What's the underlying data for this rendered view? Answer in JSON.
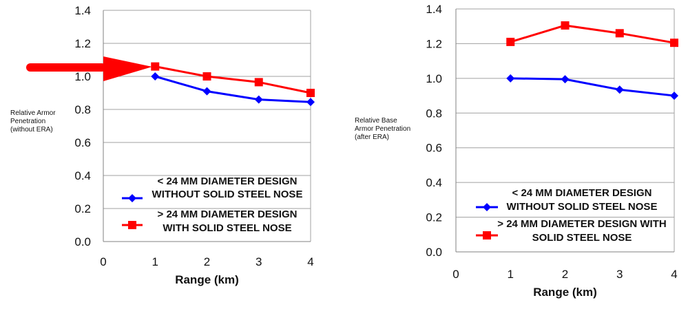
{
  "chart_data": [
    {
      "type": "line",
      "xlabel": "Range (km)",
      "ylabel_lines": [
        "Relative Armor",
        "Penetration",
        "(without ERA)"
      ],
      "xlim": [
        0,
        4
      ],
      "ylim": [
        0,
        1.4
      ],
      "x_ticks": [
        "0",
        "1",
        "2",
        "3",
        "4"
      ],
      "y_ticks": [
        "0.0",
        "0.2",
        "0.4",
        "0.6",
        "0.8",
        "1.0",
        "1.2",
        "1.4"
      ],
      "grid": true,
      "legend_position": "bottom-right",
      "annotation": "red-arrow pointing at x=1 red point",
      "series": [
        {
          "name_lines": [
            "< 24 MM DIAMETER DESIGN",
            "WITHOUT SOLID STEEL NOSE"
          ],
          "color": "#0000ff",
          "marker": "diamond",
          "x": [
            1,
            2,
            3,
            4
          ],
          "y": [
            1.0,
            0.91,
            0.86,
            0.845
          ]
        },
        {
          "name_lines": [
            "> 24 MM DIAMETER DESIGN",
            "WITH SOLID STEEL NOSE"
          ],
          "color": "#ff0000",
          "marker": "square",
          "x": [
            1,
            2,
            3,
            4
          ],
          "y": [
            1.06,
            1.0,
            0.965,
            0.9
          ]
        }
      ]
    },
    {
      "type": "line",
      "xlabel": "Range (km)",
      "ylabel_lines": [
        "Relative Base",
        "Armor Penetration",
        "(after ERA)"
      ],
      "xlim": [
        0,
        4
      ],
      "ylim": [
        0,
        1.4
      ],
      "x_ticks": [
        "0",
        "1",
        "2",
        "3",
        "4"
      ],
      "y_ticks": [
        "0.0",
        "0.2",
        "0.4",
        "0.6",
        "0.8",
        "1.0",
        "1.2",
        "1.4"
      ],
      "grid": true,
      "legend_position": "bottom-right",
      "series": [
        {
          "name_lines": [
            "< 24 MM DIAMETER DESIGN",
            "WITHOUT SOLID STEEL NOSE"
          ],
          "color": "#0000ff",
          "marker": "diamond",
          "x": [
            1,
            2,
            3,
            4
          ],
          "y": [
            1.0,
            0.995,
            0.935,
            0.9
          ]
        },
        {
          "name_lines": [
            "> 24 MM DIAMETER DESIGN WITH",
            "SOLID STEEL NOSE"
          ],
          "color": "#ff0000",
          "marker": "square",
          "x": [
            1,
            2,
            3,
            4
          ],
          "y": [
            1.21,
            1.305,
            1.26,
            1.205
          ]
        }
      ]
    }
  ]
}
